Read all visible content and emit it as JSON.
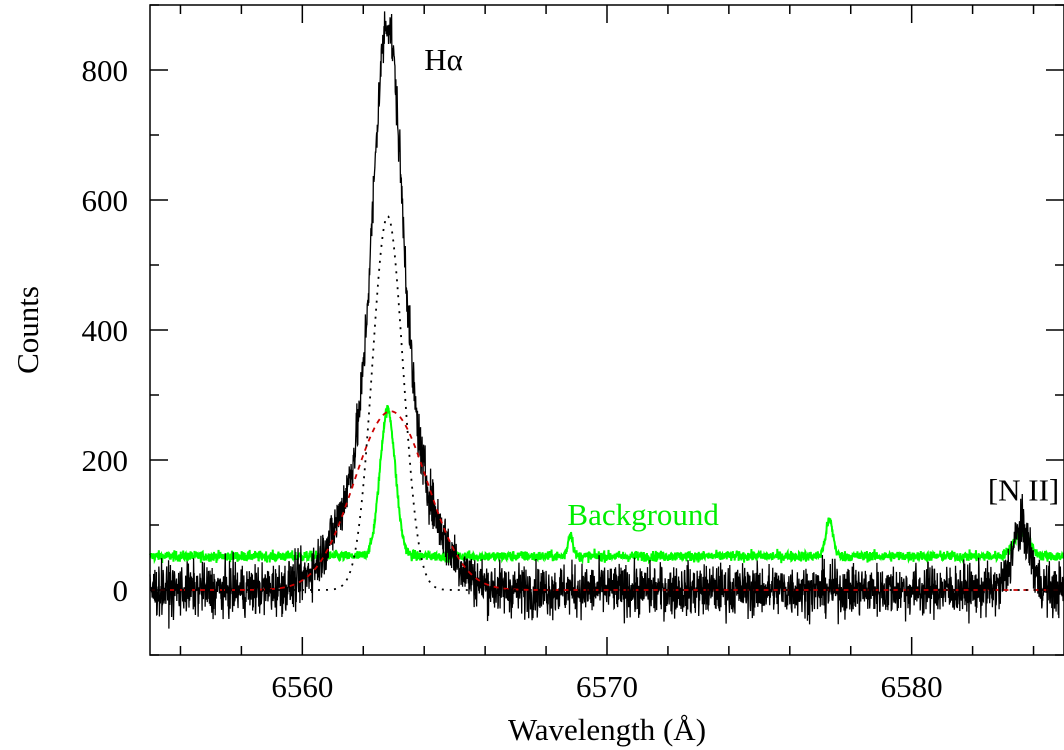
{
  "chart_data": {
    "type": "line",
    "xlabel": "Wavelength (Å)",
    "ylabel": "Counts",
    "xlim": [
      6555,
      6585
    ],
    "ylim": [
      -100,
      900
    ],
    "xticks": [
      6560,
      6570,
      6580
    ],
    "yticks": [
      0,
      200,
      400,
      600,
      800
    ],
    "grid": false,
    "colors": {
      "observed": "#000000",
      "background": "#00ff00",
      "broad_component": "#cc0000",
      "narrow_component": "#000000"
    },
    "annotations": [
      {
        "text": "Hα",
        "x": 6564.0,
        "y": 800,
        "color": "#000000"
      },
      {
        "text": "Background",
        "x": 6568.7,
        "y": 100,
        "color": "#00ee00"
      },
      {
        "text": "[N II]",
        "x": 6582.5,
        "y": 138,
        "color": "#000000"
      }
    ],
    "series": [
      {
        "style": "solid",
        "color": "#000000",
        "description_free": true,
        "peaks": [
          {
            "center": 6562.8,
            "amplitude": 600,
            "sigma": 0.45
          },
          {
            "center": 6562.8,
            "amplitude": 275,
            "sigma": 1.2
          },
          {
            "center": 6583.6,
            "amplitude": 95,
            "sigma": 0.3
          }
        ],
        "baseline": 0,
        "noise": 20
      },
      {
        "style": "solid",
        "color": "#00ff00",
        "peaks": [
          {
            "center": 6562.8,
            "amplitude": 225,
            "sigma": 0.25
          },
          {
            "center": 6568.8,
            "amplitude": 35,
            "sigma": 0.08
          },
          {
            "center": 6577.3,
            "amplitude": 55,
            "sigma": 0.12
          },
          {
            "center": 6583.6,
            "amplitude": 38,
            "sigma": 0.25
          }
        ],
        "baseline": 52,
        "noise": 4
      },
      {
        "style": "dashed",
        "color": "#cc0000",
        "peaks": [
          {
            "center": 6562.9,
            "amplitude": 275,
            "sigma": 1.2
          }
        ],
        "baseline": 0,
        "noise": 0
      },
      {
        "style": "dotted",
        "color": "#000000",
        "peaks": [
          {
            "center": 6562.8,
            "amplitude": 575,
            "sigma": 0.5
          }
        ],
        "baseline": 0,
        "noise": 0
      }
    ]
  }
}
